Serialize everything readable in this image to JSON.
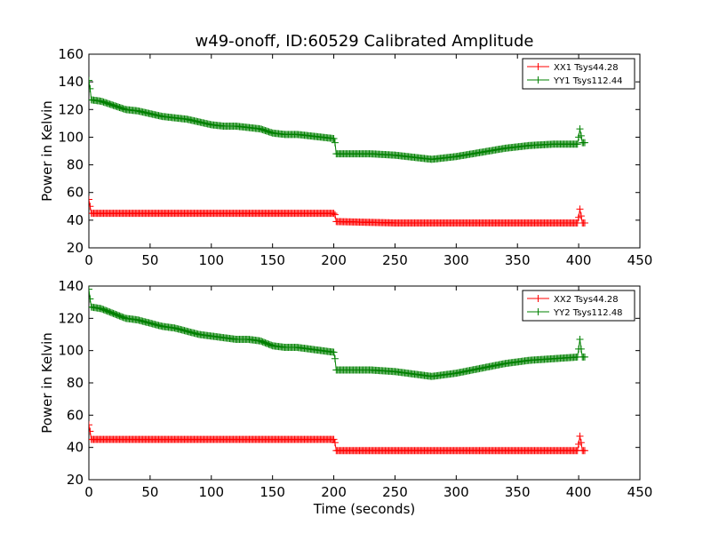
{
  "title": "w49-onoff, ID:60529 Calibrated Amplitude",
  "xlabel": "Time (seconds)",
  "chart_data": [
    {
      "type": "line",
      "ylabel": "Power in Kelvin",
      "xlim": [
        0,
        450
      ],
      "ylim": [
        20,
        160
      ],
      "xticks": [
        0,
        50,
        100,
        150,
        200,
        250,
        300,
        350,
        400,
        450
      ],
      "yticks": [
        20,
        40,
        60,
        80,
        100,
        120,
        140,
        160
      ],
      "legend_position": "top-right",
      "series": [
        {
          "name": "XX1 Tsys44.28",
          "color": "#ff0000",
          "marker": "plus",
          "points": [
            [
              0,
              55
            ],
            [
              1,
              50
            ],
            [
              2,
              45
            ],
            [
              100,
              45
            ],
            [
              200,
              45
            ],
            [
              201,
              44
            ],
            [
              202,
              39
            ],
            [
              250,
              38
            ],
            [
              300,
              38
            ],
            [
              350,
              38
            ],
            [
              399,
              38
            ],
            [
              400,
              42
            ],
            [
              401,
              48
            ],
            [
              402,
              43
            ],
            [
              403,
              38
            ],
            [
              404,
              38
            ],
            [
              405,
              38
            ]
          ]
        },
        {
          "name": "YY1 Tsys112.44",
          "color": "#008000",
          "marker": "plus",
          "points": [
            [
              0,
              141
            ],
            [
              1,
              135
            ],
            [
              2,
              127
            ],
            [
              10,
              126
            ],
            [
              20,
              123
            ],
            [
              30,
              120
            ],
            [
              40,
              119
            ],
            [
              50,
              117
            ],
            [
              60,
              115
            ],
            [
              70,
              114
            ],
            [
              80,
              113
            ],
            [
              90,
              111
            ],
            [
              100,
              109
            ],
            [
              110,
              108
            ],
            [
              120,
              108
            ],
            [
              130,
              107
            ],
            [
              140,
              106
            ],
            [
              150,
              103
            ],
            [
              160,
              102
            ],
            [
              170,
              102
            ],
            [
              180,
              101
            ],
            [
              190,
              100
            ],
            [
              200,
              99
            ],
            [
              201,
              96
            ],
            [
              202,
              88
            ],
            [
              230,
              88
            ],
            [
              250,
              87
            ],
            [
              270,
              85
            ],
            [
              280,
              84
            ],
            [
              300,
              86
            ],
            [
              320,
              89
            ],
            [
              340,
              92
            ],
            [
              360,
              94
            ],
            [
              380,
              95
            ],
            [
              399,
              95
            ],
            [
              400,
              100
            ],
            [
              401,
              106
            ],
            [
              402,
              101
            ],
            [
              403,
              96
            ],
            [
              404,
              96
            ],
            [
              405,
              96
            ]
          ]
        }
      ]
    },
    {
      "type": "line",
      "ylabel": "Power in Kelvin",
      "xlabel": "Time (seconds)",
      "xlim": [
        0,
        450
      ],
      "ylim": [
        20,
        140
      ],
      "xticks": [
        0,
        50,
        100,
        150,
        200,
        250,
        300,
        350,
        400,
        450
      ],
      "yticks": [
        20,
        40,
        60,
        80,
        100,
        120,
        140
      ],
      "legend_position": "top-right",
      "series": [
        {
          "name": "XX2 Tsys44.28",
          "color": "#ff0000",
          "marker": "plus",
          "points": [
            [
              0,
              54
            ],
            [
              1,
              50
            ],
            [
              2,
              45
            ],
            [
              100,
              45
            ],
            [
              200,
              45
            ],
            [
              201,
              43
            ],
            [
              202,
              38
            ],
            [
              250,
              38
            ],
            [
              300,
              38
            ],
            [
              350,
              38
            ],
            [
              399,
              38
            ],
            [
              400,
              42
            ],
            [
              401,
              47
            ],
            [
              402,
              43
            ],
            [
              403,
              38
            ],
            [
              404,
              38
            ],
            [
              405,
              38
            ]
          ]
        },
        {
          "name": "YY2 Tsys112.48",
          "color": "#008000",
          "marker": "plus",
          "points": [
            [
              0,
              138
            ],
            [
              1,
              132
            ],
            [
              2,
              127
            ],
            [
              10,
              126
            ],
            [
              20,
              123
            ],
            [
              30,
              120
            ],
            [
              40,
              119
            ],
            [
              50,
              117
            ],
            [
              60,
              115
            ],
            [
              70,
              114
            ],
            [
              80,
              112
            ],
            [
              90,
              110
            ],
            [
              100,
              109
            ],
            [
              110,
              108
            ],
            [
              120,
              107
            ],
            [
              130,
              107
            ],
            [
              140,
              106
            ],
            [
              150,
              103
            ],
            [
              160,
              102
            ],
            [
              170,
              102
            ],
            [
              180,
              101
            ],
            [
              190,
              100
            ],
            [
              200,
              99
            ],
            [
              201,
              95
            ],
            [
              202,
              88
            ],
            [
              230,
              88
            ],
            [
              250,
              87
            ],
            [
              270,
              85
            ],
            [
              280,
              84
            ],
            [
              300,
              86
            ],
            [
              320,
              89
            ],
            [
              340,
              92
            ],
            [
              360,
              94
            ],
            [
              380,
              95
            ],
            [
              399,
              96
            ],
            [
              400,
              101
            ],
            [
              401,
              107
            ],
            [
              402,
              101
            ],
            [
              403,
              96
            ],
            [
              404,
              96
            ],
            [
              405,
              96
            ]
          ]
        }
      ]
    }
  ]
}
